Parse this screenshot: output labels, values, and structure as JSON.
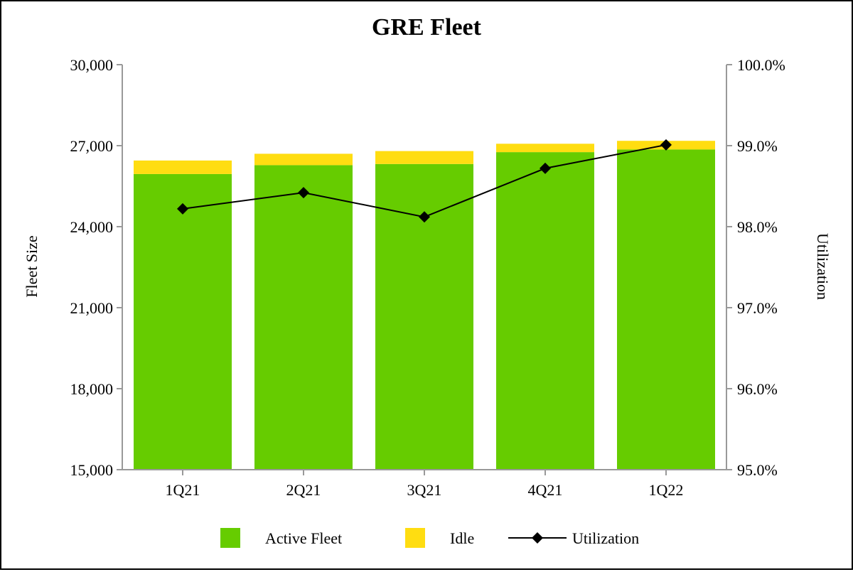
{
  "chart_data": {
    "type": "bar",
    "title": "GRE Fleet",
    "categories": [
      "1Q21",
      "2Q21",
      "3Q21",
      "4Q21",
      "1Q22"
    ],
    "series": [
      {
        "name": "Active Fleet",
        "kind": "bar",
        "stack": "fleet",
        "color": "#66cc00",
        "axis": "left",
        "values": [
          25950,
          26280,
          26320,
          26760,
          26860
        ]
      },
      {
        "name": "Idle",
        "kind": "bar",
        "stack": "fleet",
        "color": "#ffdd11",
        "axis": "left",
        "values": [
          500,
          420,
          480,
          310,
          320
        ]
      },
      {
        "name": "Utilization",
        "kind": "line",
        "marker": "diamond",
        "color": "#000000",
        "axis": "right",
        "values": [
          98.22,
          98.42,
          98.12,
          98.72,
          99.01
        ]
      }
    ],
    "y_left": {
      "label": "Fleet Size",
      "ylim": [
        15000,
        30000
      ],
      "ticks": [
        15000,
        18000,
        21000,
        24000,
        27000,
        30000
      ],
      "tick_labels": [
        "15,000",
        "18,000",
        "21,000",
        "24,000",
        "27,000",
        "30,000"
      ]
    },
    "y_right": {
      "label": "Utilization",
      "ylim": [
        95.0,
        100.0
      ],
      "ticks": [
        95,
        96,
        97,
        98,
        99,
        100
      ],
      "tick_labels": [
        "95.0%",
        "96.0%",
        "97.0%",
        "98.0%",
        "99.0%",
        "100.0%"
      ]
    },
    "grid": false,
    "legend_position": "bottom"
  }
}
